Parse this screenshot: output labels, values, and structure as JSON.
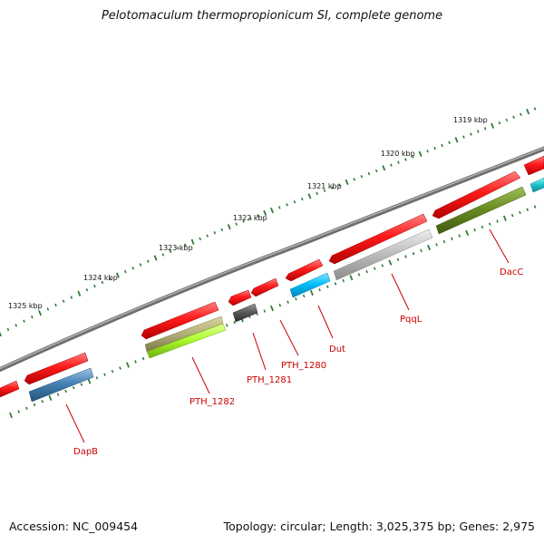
{
  "title": "Pelotomaculum thermopropionicum SI, complete genome",
  "accession_text": "Accession: NC_009454",
  "topology_text": "Topology: circular; Length: 3,025,375 bp; Genes: 2,975",
  "colors": {
    "backbone": "#7f7f7f",
    "forward_strand": "#ff1a1a",
    "label": "#cc0000",
    "tick": "#2e7d32"
  },
  "scale_labels": [
    "1319 kbp",
    "1320 kbp",
    "1321 kbp",
    "1322 kbp",
    "1323 kbp",
    "1324 kbp",
    "1325 kbp"
  ],
  "gene_labels": [
    {
      "text": "DacC",
      "color": "#6b8e23"
    },
    {
      "text": "PqqL",
      "color": "#c0c0c0"
    },
    {
      "text": "Dut",
      "color": "#00bfff"
    },
    {
      "text": "PTH_1280",
      "color": "#ff1a1a"
    },
    {
      "text": "PTH_1281",
      "color": "#5a5a5a"
    },
    {
      "text": "PTH_1282",
      "color": "#adff2f"
    },
    {
      "text": "DapB",
      "color": "#4682b4"
    }
  ]
}
